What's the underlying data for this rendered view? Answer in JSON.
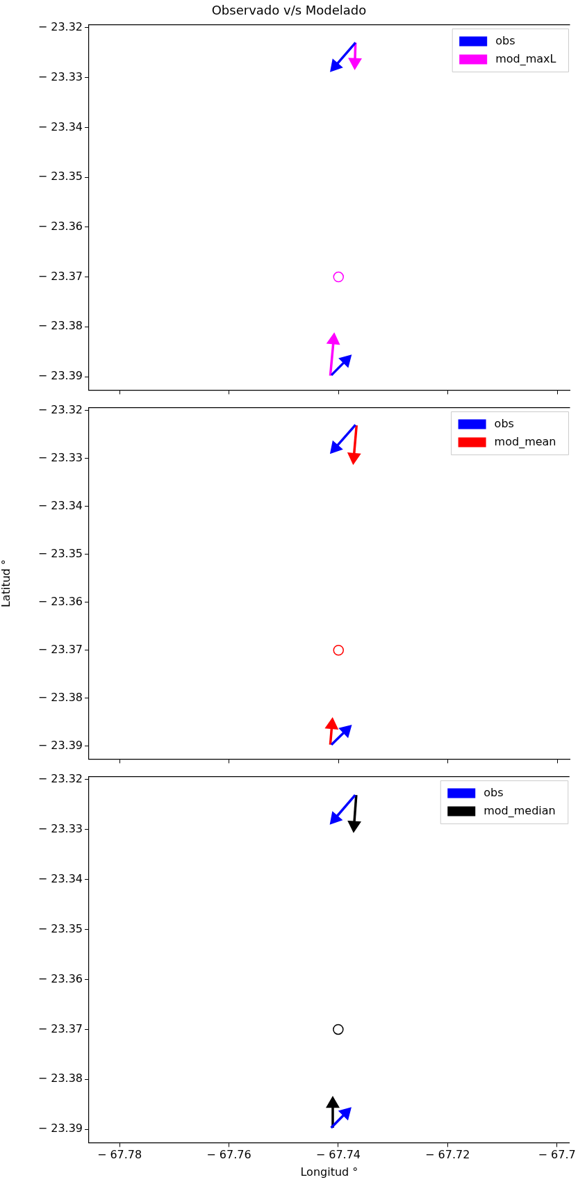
{
  "chart_data": [
    {
      "type": "line",
      "title": "Observado v/s Modelado",
      "xlim": [
        -67.7856,
        -67.6977
      ],
      "xticks": [
        -67.78,
        -67.76,
        -67.74,
        -67.72,
        -67.7
      ],
      "ylim": [
        -23.3927,
        -23.3194
      ],
      "yticks": [
        -23.32,
        -23.33,
        -23.34,
        -23.35,
        -23.36,
        -23.37,
        -23.38,
        -23.39
      ],
      "tick_labels": "y",
      "grid": false,
      "legend": "top right",
      "series": [
        {
          "name": "obs",
          "color": "#0000ff",
          "marker": "triangle",
          "x": [
            -67.7369,
            -67.7406
          ],
          "values": [
            -23.323,
            -23.3277
          ]
        },
        {
          "name": "mod_maxL",
          "color": "#ff00ff",
          "marker": "triangle",
          "x": [
            -67.7369,
            -67.737
          ],
          "values": [
            -23.323,
            -23.3269
          ]
        },
        {
          "type": "scatter",
          "marker": "circle",
          "color": "#ff00ff",
          "x": [
            -67.74
          ],
          "values": [
            -23.37
          ]
        },
        {
          "color": "#0000ff",
          "marker": "triangle",
          "x": [
            -67.7413,
            -67.7386
          ],
          "values": [
            -23.3897,
            -23.3867
          ]
        },
        {
          "color": "#ff00ff",
          "marker": "triangle",
          "x": [
            -67.7415,
            -67.7409
          ],
          "values": [
            -23.3898,
            -23.3827
          ]
        }
      ]
    },
    {
      "type": "line",
      "ylabel": "Latitud °",
      "xlim": [
        -67.7856,
        -67.6977
      ],
      "xticks": [
        -67.78,
        -67.76,
        -67.74,
        -67.72,
        -67.7
      ],
      "ylim": [
        -23.3927,
        -23.3194
      ],
      "yticks": [
        -23.32,
        -23.33,
        -23.34,
        -23.35,
        -23.36,
        -23.37,
        -23.38,
        -23.39
      ],
      "tick_labels": "y",
      "grid": false,
      "legend": "top right",
      "series": [
        {
          "name": "obs",
          "color": "#0000ff",
          "marker": "triangle",
          "x": [
            -67.7369,
            -67.7406
          ],
          "values": [
            -23.323,
            -23.3278
          ]
        },
        {
          "name": "mod_mean",
          "color": "#ff0000",
          "marker": "triangle",
          "x": [
            -67.7367,
            -67.7372
          ],
          "values": [
            -23.3231,
            -23.3297
          ]
        },
        {
          "type": "scatter",
          "marker": "circle",
          "color": "#ff0000",
          "x": [
            -67.74
          ],
          "values": [
            -23.37
          ]
        },
        {
          "color": "#0000ff",
          "marker": "triangle",
          "x": [
            -67.7413,
            -67.7386
          ],
          "values": [
            -23.3897,
            -23.3867
          ]
        },
        {
          "color": "#ff0000",
          "marker": "triangle",
          "x": [
            -67.7415,
            -67.7412
          ],
          "values": [
            -23.3897,
            -23.3856
          ]
        }
      ]
    },
    {
      "type": "line",
      "xlabel": "Longitud °",
      "xlim": [
        -67.7856,
        -67.6977
      ],
      "xticks": [
        -67.78,
        -67.76,
        -67.74,
        -67.72,
        -67.7
      ],
      "ylim": [
        -23.3927,
        -23.3194
      ],
      "yticks": [
        -23.32,
        -23.33,
        -23.34,
        -23.35,
        -23.36,
        -23.37,
        -23.38,
        -23.39
      ],
      "grid": false,
      "legend": "top right",
      "series": [
        {
          "name": "obs",
          "color": "#0000ff",
          "marker": "triangle",
          "x": [
            -67.7369,
            -67.7406
          ],
          "values": [
            -23.3231,
            -23.3278
          ]
        },
        {
          "name": "mod_median",
          "color": "#000000",
          "marker": "triangle",
          "x": [
            -67.7367,
            -67.7371
          ],
          "values": [
            -23.3231,
            -23.3291
          ]
        },
        {
          "type": "scatter",
          "marker": "circle",
          "color": "#000000",
          "x": [
            -67.74
          ],
          "values": [
            -23.37
          ]
        },
        {
          "color": "#0000ff",
          "marker": "triangle",
          "x": [
            -67.7413,
            -67.7386
          ],
          "values": [
            -23.3897,
            -23.3867
          ]
        },
        {
          "color": "#000000",
          "marker": "triangle",
          "x": [
            -67.741,
            -67.741
          ],
          "values": [
            -23.3897,
            -23.3849
          ]
        }
      ]
    }
  ]
}
